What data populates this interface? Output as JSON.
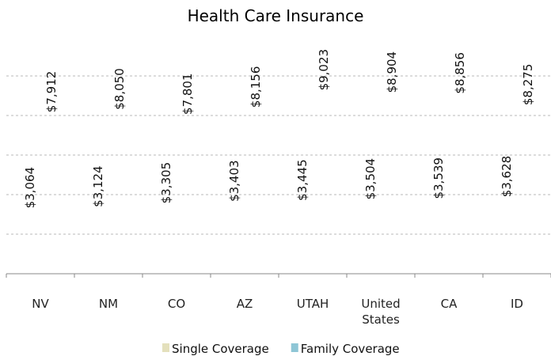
{
  "chart_data": {
    "type": "bar",
    "title": "Health Care Insurance",
    "categories": [
      "NV",
      "NM",
      "CO",
      "AZ",
      "UTAH",
      "United States",
      "CA",
      "ID"
    ],
    "series": [
      {
        "name": "Single Coverage",
        "color": "#e4e0bc",
        "colors": [
          "#e4e0bc",
          "#e4e0bc",
          "#e4e0bc",
          "#e4e0bc",
          "#f0a820",
          "#e4e0bc",
          "#e4e0bc",
          "#e4e0bc"
        ],
        "values": [
          3064,
          3124,
          3305,
          3403,
          3445,
          3504,
          3539,
          3628
        ],
        "value_labels": [
          "$3,064",
          "$3,124",
          "$3,305",
          "$3,403",
          "$3,445",
          "$3,504",
          "$3,539",
          "$3,628"
        ]
      },
      {
        "name": "Family Coverage",
        "color": "#8ec6d6",
        "colors": [
          "#8ec6d6",
          "#8ec6d6",
          "#8ec6d6",
          "#8ec6d6",
          "#2f5f8f",
          "#8ec6d6",
          "#8ec6d6",
          "#8ec6d6"
        ],
        "values": [
          7912,
          8050,
          7801,
          8156,
          9023,
          8904,
          8856,
          8275
        ],
        "value_labels": [
          "$7,912",
          "$8,050",
          "$7,801",
          "$8,156",
          "$9,023",
          "$8,904",
          "$8,856",
          "$8,275"
        ]
      }
    ],
    "ylim": [
      0,
      10000
    ],
    "yticks": [
      0,
      2000,
      4000,
      6000,
      8000,
      10000
    ],
    "grid": true,
    "legend": "bottom"
  }
}
